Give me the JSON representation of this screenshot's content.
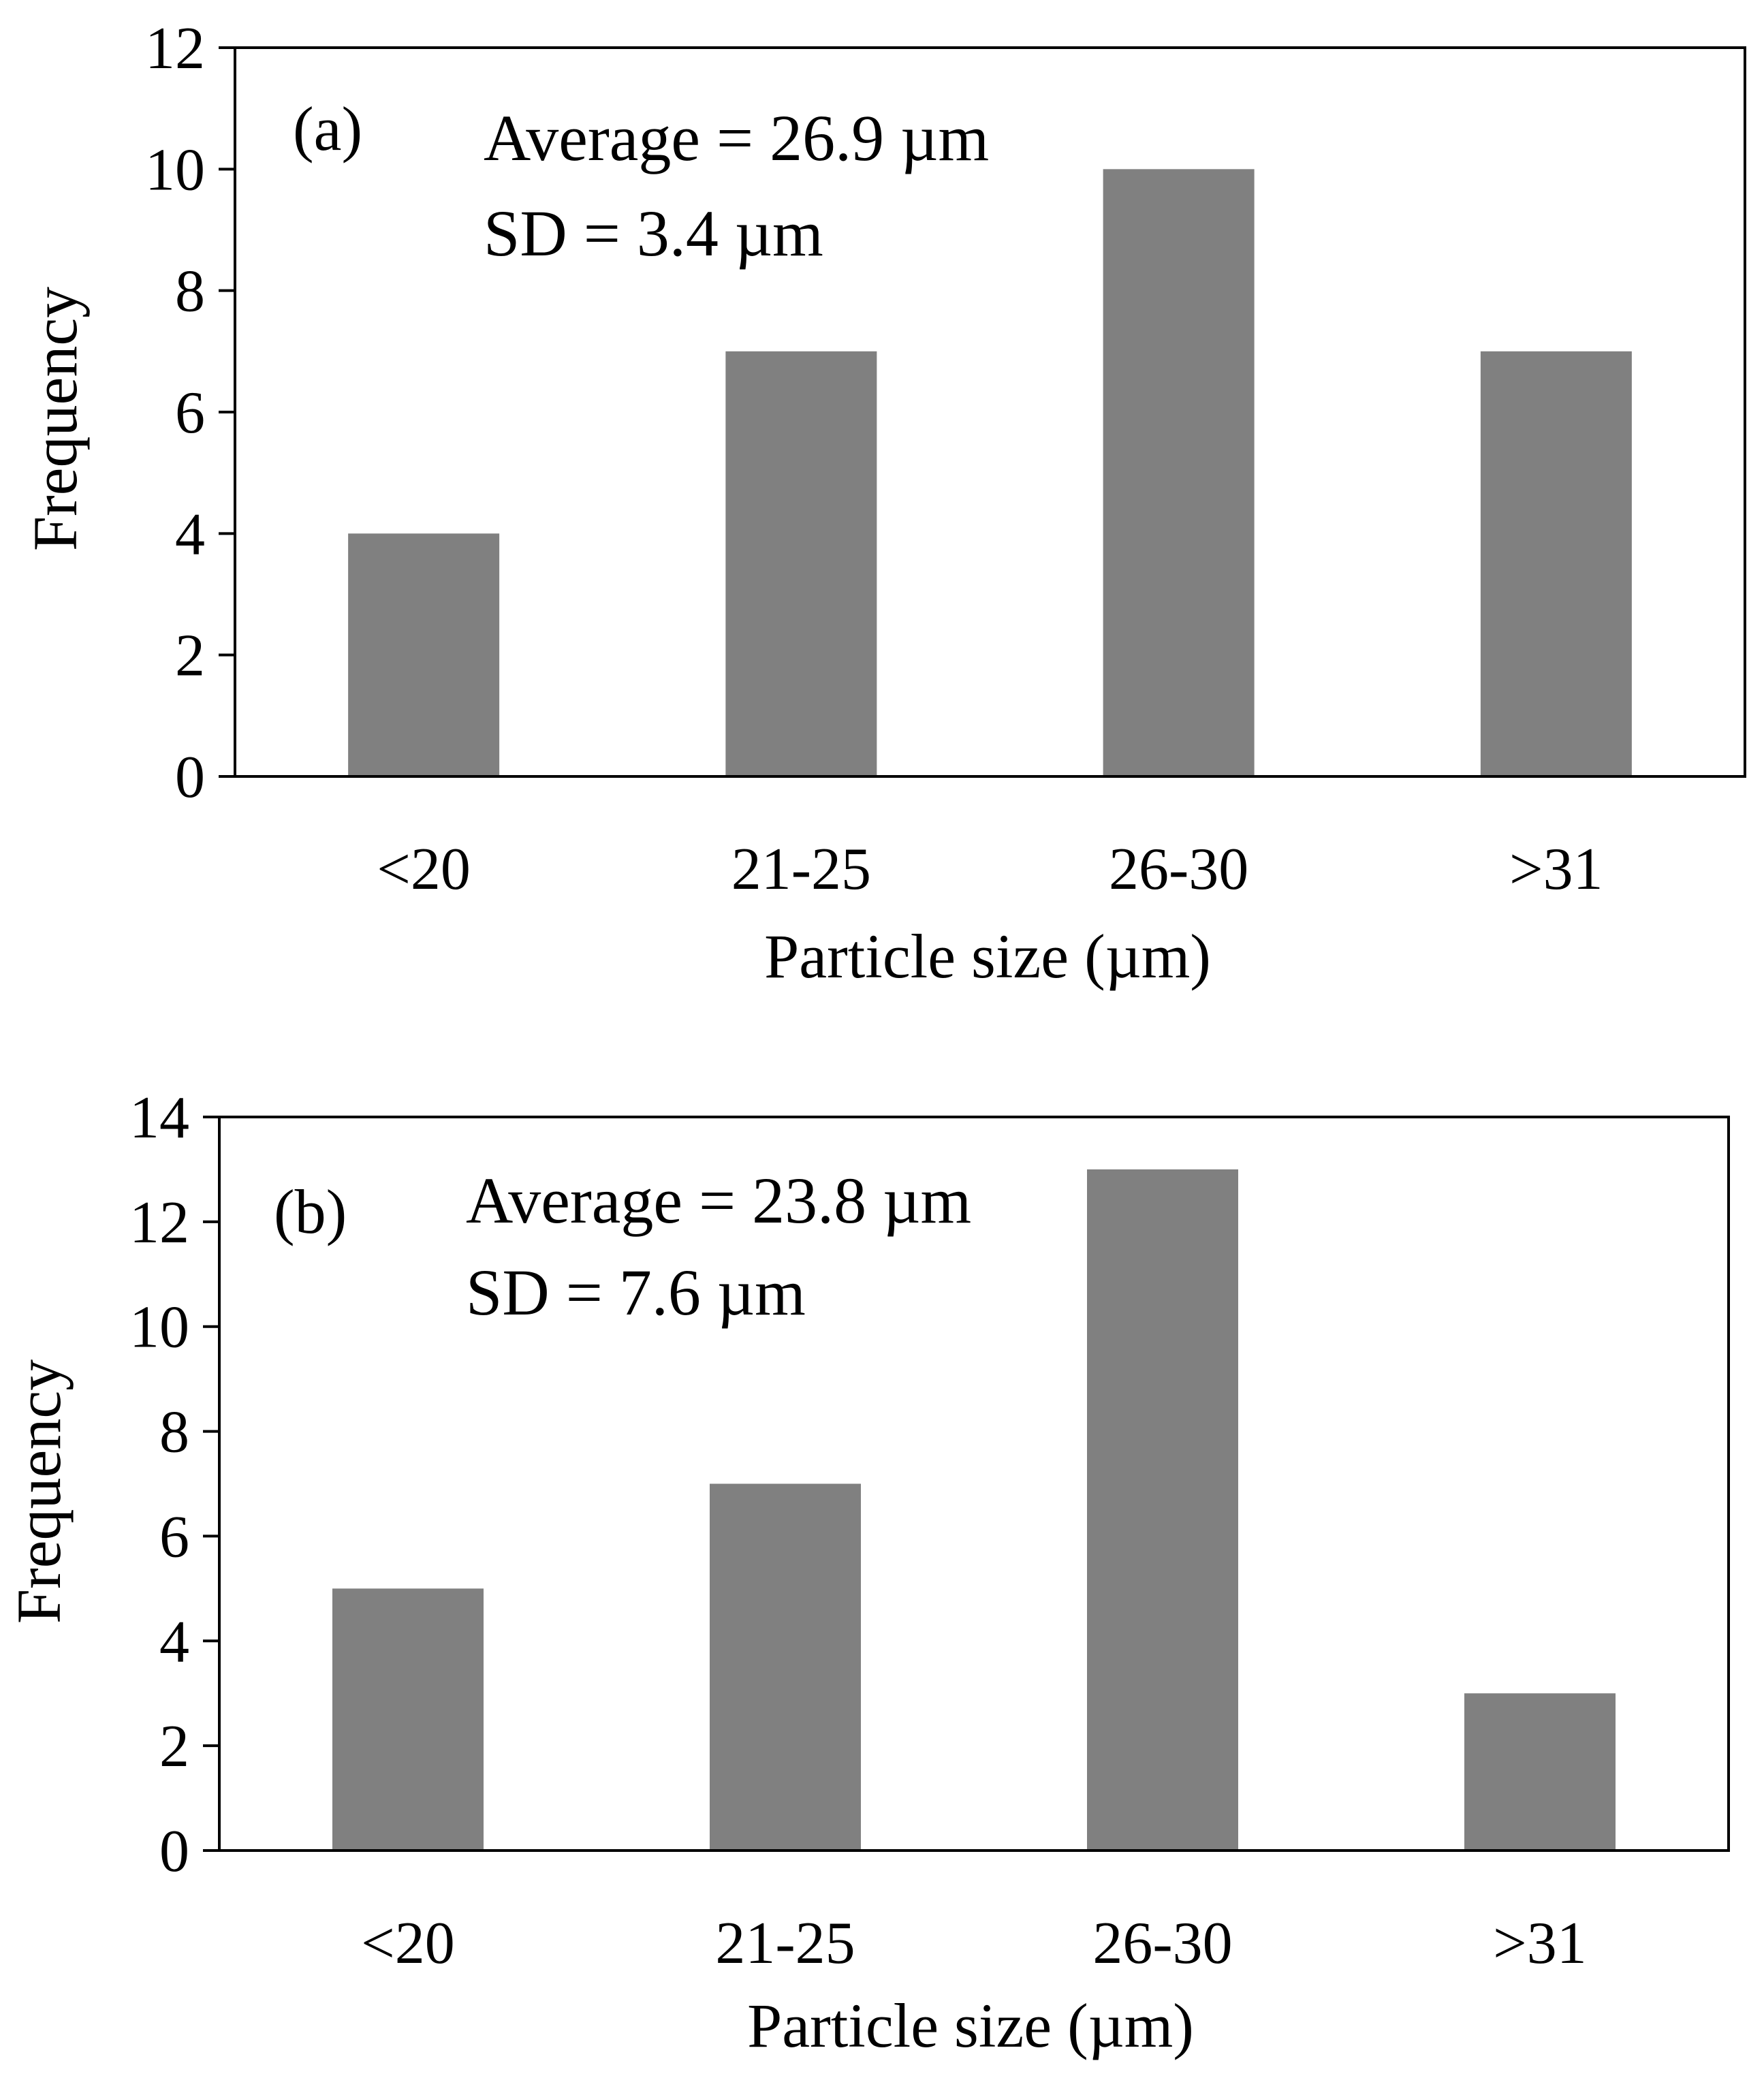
{
  "colors": {
    "bar": "#808080",
    "axis": "#000000",
    "background": "#ffffff"
  },
  "chart_data": [
    {
      "type": "bar",
      "panel_label": "(a)",
      "annotations": [
        "Average = 26.9 µm",
        "SD = 3.4 µm"
      ],
      "categories": [
        "<20",
        "21-25",
        "26-30",
        ">31"
      ],
      "values": [
        4,
        7,
        10,
        7
      ],
      "xlabel": "Particle size (µm)",
      "ylabel": "Frequency",
      "ylim": [
        0,
        12
      ],
      "yticks": [
        "0",
        "2",
        "4",
        "6",
        "8",
        "10",
        "12"
      ],
      "grid": false,
      "legend": "none"
    },
    {
      "type": "bar",
      "panel_label": "(b)",
      "annotations": [
        "Average = 23.8 µm",
        "SD = 7.6 µm"
      ],
      "categories": [
        "<20",
        "21-25",
        "26-30",
        ">31"
      ],
      "values": [
        5,
        7,
        13,
        3
      ],
      "xlabel": "Particle size (µm)",
      "ylabel": "Frequency",
      "ylim": [
        0,
        14
      ],
      "yticks": [
        "0",
        "2",
        "4",
        "6",
        "8",
        "10",
        "12",
        "14"
      ],
      "grid": false,
      "legend": "none"
    }
  ]
}
